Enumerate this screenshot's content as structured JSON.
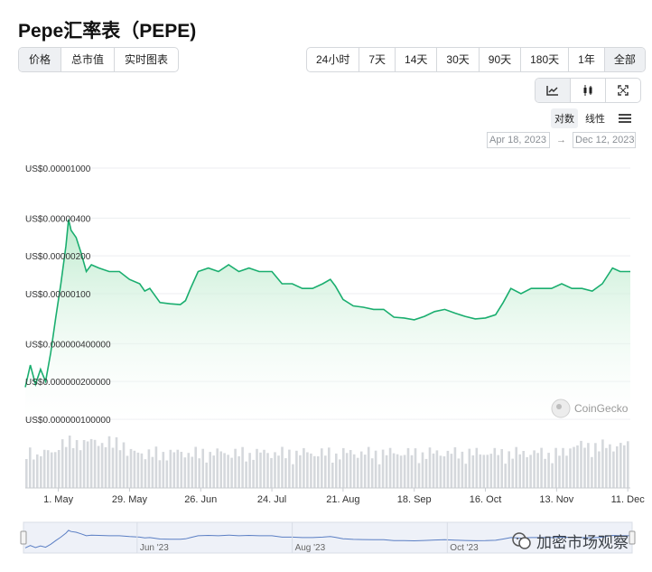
{
  "title": "Pepe汇率表（PEPE)",
  "metric_tabs": [
    {
      "label": "价格",
      "active": true
    },
    {
      "label": "总市值",
      "active": false
    },
    {
      "label": "实时图表",
      "active": false
    }
  ],
  "range_tabs": [
    {
      "label": "24小时",
      "active": false
    },
    {
      "label": "7天",
      "active": false
    },
    {
      "label": "14天",
      "active": false
    },
    {
      "label": "30天",
      "active": false
    },
    {
      "label": "90天",
      "active": false
    },
    {
      "label": "180天",
      "active": false
    },
    {
      "label": "1年",
      "active": false
    },
    {
      "label": "全部",
      "active": true
    }
  ],
  "chart_type_buttons": [
    {
      "icon": "line-chart-icon",
      "active": true
    },
    {
      "icon": "candlestick-icon",
      "active": false
    },
    {
      "icon": "fullscreen-icon",
      "active": false
    }
  ],
  "scale_options": {
    "log": "对数",
    "linear": "线性",
    "selected": "log"
  },
  "date_range": {
    "from": "Apr 18, 2023",
    "to": "Dec 12, 2023",
    "arrow": "→"
  },
  "brand": "CoinGecko",
  "watermark": "加密市场观察",
  "colors": {
    "line": "#1aae6f",
    "fill_top": "#b6e9c8",
    "volume": "#d5d8dc",
    "navigator_line": "#5b7fc4"
  },
  "chart_data": {
    "type": "line",
    "y_scale": "log",
    "ylim": [
      1e-07,
      1e-05
    ],
    "y_ticks": [
      {
        "value": 1e-05,
        "label": "US$0.00001000"
      },
      {
        "value": 4e-06,
        "label": "US$0.00000400"
      },
      {
        "value": 2e-06,
        "label": "US$0.00000200"
      },
      {
        "value": 1e-06,
        "label": "US$0.00000100"
      },
      {
        "value": 4e-07,
        "label": "US$0.000000400000"
      },
      {
        "value": 2e-07,
        "label": "US$0.000000200000"
      },
      {
        "value": 1e-07,
        "label": "US$0.000000100000"
      }
    ],
    "xlim": [
      "2023-04-18",
      "2023-12-12"
    ],
    "x_ticks": [
      {
        "date": "2023-05-01",
        "label": "1. May"
      },
      {
        "date": "2023-05-29",
        "label": "29. May"
      },
      {
        "date": "2023-06-26",
        "label": "26. Jun"
      },
      {
        "date": "2023-07-24",
        "label": "24. Jul"
      },
      {
        "date": "2023-08-21",
        "label": "21. Aug"
      },
      {
        "date": "2023-09-18",
        "label": "18. Sep"
      },
      {
        "date": "2023-10-16",
        "label": "16. Oct"
      },
      {
        "date": "2023-11-13",
        "label": "13. Nov"
      },
      {
        "date": "2023-12-11",
        "label": "11. Dec"
      }
    ],
    "navigator_ticks": [
      {
        "date": "2023-06-01",
        "label": "Jun '23"
      },
      {
        "date": "2023-08-01",
        "label": "Aug '23"
      },
      {
        "date": "2023-10-01",
        "label": "Oct '23"
      }
    ],
    "price": [
      [
        "2023-04-18",
        1.8e-07
      ],
      [
        "2023-04-20",
        2.7e-07
      ],
      [
        "2023-04-22",
        1.9e-07
      ],
      [
        "2023-04-24",
        2.5e-07
      ],
      [
        "2023-04-26",
        2e-07
      ],
      [
        "2023-04-28",
        3.4e-07
      ],
      [
        "2023-04-30",
        6.5e-07
      ],
      [
        "2023-05-02",
        1.2e-06
      ],
      [
        "2023-05-04",
        2.4e-06
      ],
      [
        "2023-05-05",
        3.9e-06
      ],
      [
        "2023-05-06",
        3.2e-06
      ],
      [
        "2023-05-08",
        2.8e-06
      ],
      [
        "2023-05-10",
        2.1e-06
      ],
      [
        "2023-05-12",
        1.5e-06
      ],
      [
        "2023-05-14",
        1.7e-06
      ],
      [
        "2023-05-17",
        1.6e-06
      ],
      [
        "2023-05-21",
        1.5e-06
      ],
      [
        "2023-05-25",
        1.5e-06
      ],
      [
        "2023-05-29",
        1.3e-06
      ],
      [
        "2023-06-02",
        1.2e-06
      ],
      [
        "2023-06-04",
        1.05e-06
      ],
      [
        "2023-06-06",
        1.1e-06
      ],
      [
        "2023-06-10",
        8.5e-07
      ],
      [
        "2023-06-14",
        8.3e-07
      ],
      [
        "2023-06-18",
        8.2e-07
      ],
      [
        "2023-06-20",
        8.8e-07
      ],
      [
        "2023-06-22",
        1.1e-06
      ],
      [
        "2023-06-25",
        1.5e-06
      ],
      [
        "2023-06-29",
        1.6e-06
      ],
      [
        "2023-07-03",
        1.5e-06
      ],
      [
        "2023-07-07",
        1.7e-06
      ],
      [
        "2023-07-11",
        1.5e-06
      ],
      [
        "2023-07-15",
        1.6e-06
      ],
      [
        "2023-07-19",
        1.5e-06
      ],
      [
        "2023-07-24",
        1.5e-06
      ],
      [
        "2023-07-28",
        1.2e-06
      ],
      [
        "2023-08-01",
        1.2e-06
      ],
      [
        "2023-08-05",
        1.1e-06
      ],
      [
        "2023-08-09",
        1.1e-06
      ],
      [
        "2023-08-13",
        1.2e-06
      ],
      [
        "2023-08-16",
        1.3e-06
      ],
      [
        "2023-08-18",
        1.15e-06
      ],
      [
        "2023-08-21",
        9e-07
      ],
      [
        "2023-08-25",
        8e-07
      ],
      [
        "2023-08-29",
        7.8e-07
      ],
      [
        "2023-09-02",
        7.5e-07
      ],
      [
        "2023-09-06",
        7.5e-07
      ],
      [
        "2023-09-10",
        6.5e-07
      ],
      [
        "2023-09-14",
        6.4e-07
      ],
      [
        "2023-09-18",
        6.2e-07
      ],
      [
        "2023-09-22",
        6.6e-07
      ],
      [
        "2023-09-26",
        7.2e-07
      ],
      [
        "2023-09-30",
        7.5e-07
      ],
      [
        "2023-10-04",
        7e-07
      ],
      [
        "2023-10-08",
        6.6e-07
      ],
      [
        "2023-10-12",
        6.3e-07
      ],
      [
        "2023-10-16",
        6.4e-07
      ],
      [
        "2023-10-20",
        6.8e-07
      ],
      [
        "2023-10-23",
        8.5e-07
      ],
      [
        "2023-10-26",
        1.1e-06
      ],
      [
        "2023-10-30",
        1e-06
      ],
      [
        "2023-11-03",
        1.1e-06
      ],
      [
        "2023-11-07",
        1.1e-06
      ],
      [
        "2023-11-11",
        1.1e-06
      ],
      [
        "2023-11-15",
        1.2e-06
      ],
      [
        "2023-11-19",
        1.1e-06
      ],
      [
        "2023-11-23",
        1.1e-06
      ],
      [
        "2023-11-27",
        1.05e-06
      ],
      [
        "2023-12-01",
        1.2e-06
      ],
      [
        "2023-12-05",
        1.6e-06
      ],
      [
        "2023-12-08",
        1.5e-06
      ],
      [
        "2023-12-12",
        1.5e-06
      ]
    ],
    "volume_shown": true
  }
}
